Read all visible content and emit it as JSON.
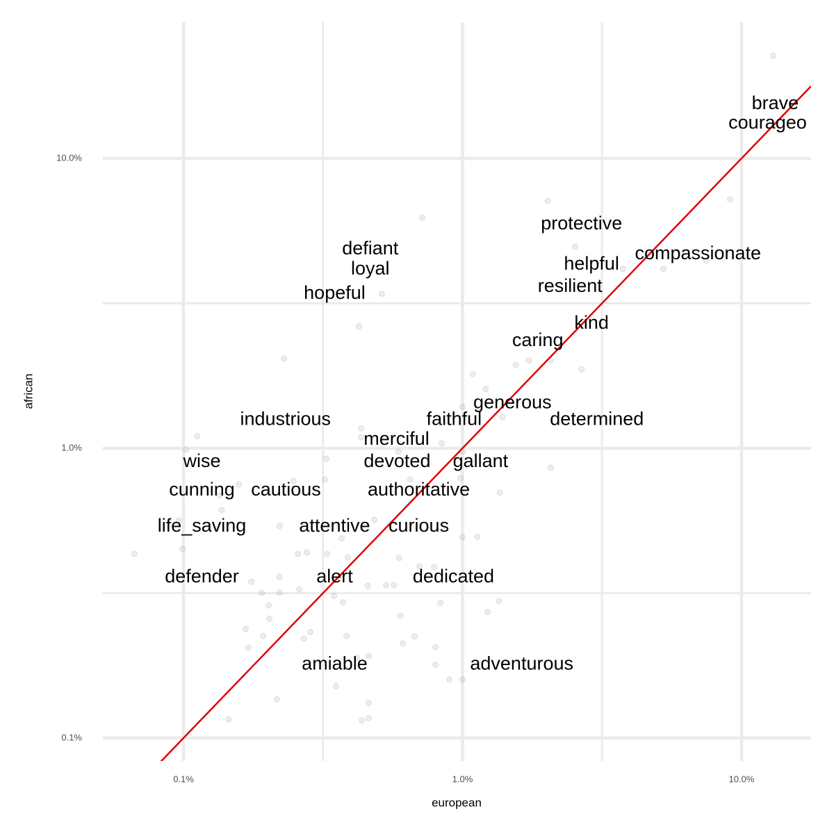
{
  "chart_data": {
    "type": "scatter",
    "x_label": "european",
    "y_label": "african",
    "log_x": true,
    "log_y": true,
    "grid": true,
    "xlim": [
      0.0514,
      17.75
    ],
    "ylim": [
      0.0833,
      29.5
    ],
    "xticks": [
      {
        "value": 0.1,
        "label": "0.1%"
      },
      {
        "value": 1,
        "label": "1.0%"
      },
      {
        "value": 10,
        "label": "10.0%"
      }
    ],
    "yticks": [
      {
        "value": 0.1,
        "label": "0.1%"
      },
      {
        "value": 1,
        "label": "1.0%"
      },
      {
        "value": 10,
        "label": "10.0%"
      }
    ],
    "x_minor_grid": [
      0.316,
      3.16
    ],
    "y_minor_grid": [
      0.316,
      3.16
    ],
    "point_color": "#999999",
    "reference_line": {
      "slope": 1,
      "intercept": 0,
      "color": "#e00000"
    },
    "x": [
      12.97,
      9.1,
      2.02,
      0.717,
      2.53,
      3.76,
      5.25,
      7.48,
      0.514,
      0.425,
      0.229,
      1.55,
      1.73,
      2.07,
      2.67,
      1.09,
      1.21,
      1.0,
      1.39,
      0.433,
      0.433,
      0.842,
      0.59,
      1.0,
      0.102,
      0.112,
      0.325,
      2.07,
      0.321,
      0.248,
      0.158,
      0.65,
      0.983,
      1.36,
      0.135,
      0.137,
      0.0963,
      0.0991,
      0.221,
      0.483,
      0.369,
      1.0,
      1.13,
      0.0667,
      0.257,
      0.277,
      0.327,
      0.388,
      0.593,
      0.701,
      0.791,
      0.175,
      0.221,
      0.191,
      0.221,
      0.26,
      0.458,
      0.532,
      0.567,
      0.346,
      0.373,
      0.832,
      1.35,
      0.202,
      0.203,
      0.6,
      1.23,
      0.167,
      0.171,
      0.193,
      0.27,
      0.285,
      0.384,
      0.611,
      0.673,
      0.8,
      0.418,
      0.461,
      0.8,
      0.897,
      1.0,
      0.352,
      0.216,
      0.461,
      0.145,
      0.436,
      0.461
    ],
    "y": [
      22.6,
      7.22,
      7.14,
      6.25,
      4.96,
      4.16,
      4.16,
      4.44,
      3.41,
      2.63,
      2.04,
      1.94,
      2.01,
      2.01,
      1.87,
      1.8,
      1.6,
      1.39,
      1.28,
      1.17,
      1.09,
      1.04,
      0.973,
      0.973,
      0.989,
      1.1,
      0.921,
      0.857,
      0.78,
      0.771,
      0.75,
      0.78,
      0.789,
      0.703,
      0.687,
      0.612,
      0.563,
      0.449,
      0.539,
      0.566,
      0.488,
      0.493,
      0.495,
      0.432,
      0.432,
      0.437,
      0.432,
      0.42,
      0.418,
      0.391,
      0.389,
      0.346,
      0.36,
      0.317,
      0.317,
      0.326,
      0.335,
      0.337,
      0.337,
      0.309,
      0.294,
      0.292,
      0.297,
      0.287,
      0.258,
      0.264,
      0.272,
      0.238,
      0.205,
      0.225,
      0.22,
      0.232,
      0.225,
      0.212,
      0.224,
      0.206,
      0.189,
      0.192,
      0.179,
      0.159,
      0.159,
      0.151,
      0.136,
      0.132,
      0.116,
      0.115,
      0.117
    ],
    "annotations": [
      {
        "text": "brave",
        "x": 13.2,
        "y": 15.4
      },
      {
        "text": "courageo",
        "x": 12.4,
        "y": 13.2
      },
      {
        "text": "protective",
        "x": 2.67,
        "y": 5.92
      },
      {
        "text": "compassionate",
        "x": 6.98,
        "y": 4.67
      },
      {
        "text": "defiant",
        "x": 0.467,
        "y": 4.85
      },
      {
        "text": "loyal",
        "x": 0.467,
        "y": 4.13
      },
      {
        "text": "helpful",
        "x": 2.9,
        "y": 4.3
      },
      {
        "text": "resilient",
        "x": 2.43,
        "y": 3.6
      },
      {
        "text": "hopeful",
        "x": 0.348,
        "y": 3.41
      },
      {
        "text": "kind",
        "x": 2.9,
        "y": 2.69
      },
      {
        "text": "caring",
        "x": 1.86,
        "y": 2.34
      },
      {
        "text": "generous",
        "x": 1.51,
        "y": 1.43
      },
      {
        "text": "industrious",
        "x": 0.232,
        "y": 1.25
      },
      {
        "text": "faithful",
        "x": 0.933,
        "y": 1.25
      },
      {
        "text": "determined",
        "x": 3.03,
        "y": 1.25
      },
      {
        "text": "merciful",
        "x": 0.58,
        "y": 1.07
      },
      {
        "text": "wise",
        "x": 0.1164,
        "y": 0.895
      },
      {
        "text": "devoted",
        "x": 0.583,
        "y": 0.895
      },
      {
        "text": "gallant",
        "x": 1.16,
        "y": 0.895
      },
      {
        "text": "cunning",
        "x": 0.1164,
        "y": 0.714
      },
      {
        "text": "cautious",
        "x": 0.233,
        "y": 0.714
      },
      {
        "text": "authoritative",
        "x": 0.697,
        "y": 0.714
      },
      {
        "text": "life_saving",
        "x": 0.1164,
        "y": 0.536
      },
      {
        "text": "attentive",
        "x": 0.348,
        "y": 0.536
      },
      {
        "text": "curious",
        "x": 0.697,
        "y": 0.536
      },
      {
        "text": "defender",
        "x": 0.1164,
        "y": 0.358
      },
      {
        "text": "alert",
        "x": 0.348,
        "y": 0.358
      },
      {
        "text": "dedicated",
        "x": 0.928,
        "y": 0.358
      },
      {
        "text": "amiable",
        "x": 0.348,
        "y": 0.179
      },
      {
        "text": "adventurous",
        "x": 1.63,
        "y": 0.179
      }
    ]
  }
}
